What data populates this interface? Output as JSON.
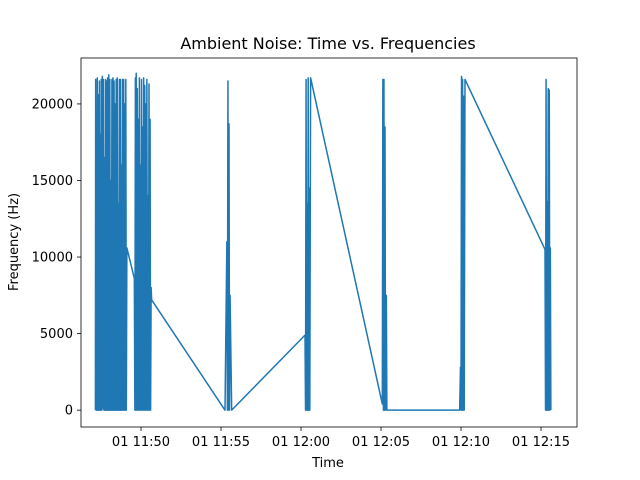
{
  "chart_data": {
    "type": "line",
    "title": "Ambient Noise: Time vs. Frequencies",
    "xlabel": "Time",
    "ylabel": "Frequency (Hz)",
    "xlim": [
      "2020-01-01 11:46:15",
      "2020-01-01 12:17:15"
    ],
    "ylim": [
      -1100,
      23000
    ],
    "xticks": [
      {
        "value": "2020-01-01 11:50:00",
        "label": "01 11:50"
      },
      {
        "value": "2020-01-01 11:55:00",
        "label": "01 11:55"
      },
      {
        "value": "2020-01-01 12:00:00",
        "label": "01 12:00"
      },
      {
        "value": "2020-01-01 12:05:00",
        "label": "01 12:05"
      },
      {
        "value": "2020-01-01 12:10:00",
        "label": "01 12:10"
      },
      {
        "value": "2020-01-01 12:15:00",
        "label": "01 12:15"
      }
    ],
    "yticks": [
      0,
      5000,
      10000,
      15000,
      20000
    ],
    "grid": false,
    "series_color": "#1f77b4",
    "series": [
      {
        "values": [
          [
            "2020-01-01 11:47:09",
            0
          ],
          [
            "2020-01-01 11:47:10",
            21600
          ],
          [
            "2020-01-01 11:47:12",
            0
          ],
          [
            "2020-01-01 11:47:13",
            13300
          ],
          [
            "2020-01-01 11:47:15",
            0
          ],
          [
            "2020-01-01 11:47:16",
            21700
          ],
          [
            "2020-01-01 11:47:18",
            0
          ],
          [
            "2020-01-01 11:47:20",
            20600
          ],
          [
            "2020-01-01 11:47:22",
            0
          ],
          [
            "2020-01-01 11:47:24",
            21500
          ],
          [
            "2020-01-01 11:47:25",
            0
          ],
          [
            "2020-01-01 11:47:27",
            18000
          ],
          [
            "2020-01-01 11:47:29",
            0
          ],
          [
            "2020-01-01 11:47:31",
            21600
          ],
          [
            "2020-01-01 11:47:33",
            0
          ],
          [
            "2020-01-01 11:47:35",
            21800
          ],
          [
            "2020-01-01 11:47:37",
            100
          ],
          [
            "2020-01-01 11:47:39",
            21600
          ],
          [
            "2020-01-01 11:47:41",
            0
          ],
          [
            "2020-01-01 11:47:43",
            16500
          ],
          [
            "2020-01-01 11:47:45",
            0
          ],
          [
            "2020-01-01 11:47:47",
            21600
          ],
          [
            "2020-01-01 11:47:49",
            0
          ],
          [
            "2020-01-01 11:47:51",
            21500
          ],
          [
            "2020-01-01 11:47:53",
            0
          ],
          [
            "2020-01-01 11:47:55",
            21700
          ],
          [
            "2020-01-01 11:47:57",
            0
          ],
          [
            "2020-01-01 11:47:59",
            21900
          ],
          [
            "2020-01-01 11:48:01",
            0
          ],
          [
            "2020-01-01 11:48:03",
            21600
          ],
          [
            "2020-01-01 11:48:05",
            0
          ],
          [
            "2020-01-01 11:48:07",
            15000
          ],
          [
            "2020-01-01 11:48:09",
            0
          ],
          [
            "2020-01-01 11:48:11",
            21600
          ],
          [
            "2020-01-01 11:48:13",
            0
          ],
          [
            "2020-01-01 11:48:15",
            21700
          ],
          [
            "2020-01-01 11:48:17",
            0
          ],
          [
            "2020-01-01 11:48:19",
            21500
          ],
          [
            "2020-01-01 11:48:21",
            0
          ],
          [
            "2020-01-01 11:48:23",
            20000
          ],
          [
            "2020-01-01 11:48:25",
            0
          ],
          [
            "2020-01-01 11:48:27",
            21600
          ],
          [
            "2020-01-01 11:48:29",
            0
          ],
          [
            "2020-01-01 11:48:31",
            21700
          ],
          [
            "2020-01-01 11:48:33",
            0
          ],
          [
            "2020-01-01 11:48:35",
            13500
          ],
          [
            "2020-01-01 11:48:37",
            0
          ],
          [
            "2020-01-01 11:48:39",
            21600
          ],
          [
            "2020-01-01 11:48:41",
            0
          ],
          [
            "2020-01-01 11:48:43",
            21600
          ],
          [
            "2020-01-01 11:48:45",
            0
          ],
          [
            "2020-01-01 11:48:47",
            16000
          ],
          [
            "2020-01-01 11:48:49",
            0
          ],
          [
            "2020-01-01 11:48:51",
            21600
          ],
          [
            "2020-01-01 11:48:53",
            0
          ],
          [
            "2020-01-01 11:48:55",
            21600
          ],
          [
            "2020-01-01 11:48:57",
            0
          ],
          [
            "2020-01-01 11:48:59",
            20000
          ],
          [
            "2020-01-01 11:49:01",
            0
          ],
          [
            "2020-01-01 11:49:03",
            21600
          ],
          [
            "2020-01-01 11:49:05",
            0
          ],
          [
            "2020-01-01 11:49:07",
            10600
          ],
          [
            "2020-01-01 11:49:35",
            8600
          ],
          [
            "2020-01-01 11:49:37",
            0
          ],
          [
            "2020-01-01 11:49:39",
            21700
          ],
          [
            "2020-01-01 11:49:40",
            0
          ],
          [
            "2020-01-01 11:49:42",
            22000
          ],
          [
            "2020-01-01 11:49:44",
            0
          ],
          [
            "2020-01-01 11:49:46",
            21000
          ],
          [
            "2020-01-01 11:49:48",
            0
          ],
          [
            "2020-01-01 11:49:50",
            19000
          ],
          [
            "2020-01-01 11:49:52",
            0
          ],
          [
            "2020-01-01 11:49:54",
            21700
          ],
          [
            "2020-01-01 11:49:56",
            0
          ],
          [
            "2020-01-01 11:49:58",
            16000
          ],
          [
            "2020-01-01 11:50:00",
            0
          ],
          [
            "2020-01-01 11:50:02",
            21600
          ],
          [
            "2020-01-01 11:50:04",
            0
          ],
          [
            "2020-01-01 11:50:06",
            18500
          ],
          [
            "2020-01-01 11:50:08",
            0
          ],
          [
            "2020-01-01 11:50:10",
            21700
          ],
          [
            "2020-01-01 11:50:12",
            0
          ],
          [
            "2020-01-01 11:50:14",
            21200
          ],
          [
            "2020-01-01 11:50:16",
            0
          ],
          [
            "2020-01-01 11:50:18",
            20000
          ],
          [
            "2020-01-01 11:50:20",
            0
          ],
          [
            "2020-01-01 11:50:22",
            21600
          ],
          [
            "2020-01-01 11:50:24",
            0
          ],
          [
            "2020-01-01 11:50:26",
            14000
          ],
          [
            "2020-01-01 11:50:28",
            0
          ],
          [
            "2020-01-01 11:50:30",
            21300
          ],
          [
            "2020-01-01 11:50:32",
            0
          ],
          [
            "2020-01-01 11:50:34",
            19000
          ],
          [
            "2020-01-01 11:50:36",
            0
          ],
          [
            "2020-01-01 11:50:38",
            8000
          ],
          [
            "2020-01-01 11:50:40",
            7200
          ],
          [
            "2020-01-01 11:55:15",
            0
          ],
          [
            "2020-01-01 11:55:22",
            11000
          ],
          [
            "2020-01-01 11:55:24",
            0
          ],
          [
            "2020-01-01 11:55:26",
            21500
          ],
          [
            "2020-01-01 11:55:28",
            0
          ],
          [
            "2020-01-01 11:55:30",
            18700
          ],
          [
            "2020-01-01 11:55:32",
            0
          ],
          [
            "2020-01-01 11:55:34",
            7500
          ],
          [
            "2020-01-01 11:55:40",
            0
          ],
          [
            "2020-01-01 12:00:15",
            4900
          ],
          [
            "2020-01-01 12:00:17",
            0
          ],
          [
            "2020-01-01 12:00:19",
            21600
          ],
          [
            "2020-01-01 12:00:21",
            0
          ],
          [
            "2020-01-01 12:00:23",
            13500
          ],
          [
            "2020-01-01 12:00:25",
            0
          ],
          [
            "2020-01-01 12:00:27",
            21700
          ],
          [
            "2020-01-01 12:00:29",
            0
          ],
          [
            "2020-01-01 12:00:31",
            14500
          ],
          [
            "2020-01-01 12:00:33",
            0
          ],
          [
            "2020-01-01 12:00:36",
            21700
          ],
          [
            "2020-01-01 12:05:05",
            400
          ],
          [
            "2020-01-01 12:05:07",
            21600
          ],
          [
            "2020-01-01 12:05:09",
            0
          ],
          [
            "2020-01-01 12:05:11",
            21600
          ],
          [
            "2020-01-01 12:05:13",
            0
          ],
          [
            "2020-01-01 12:05:15",
            18500
          ],
          [
            "2020-01-01 12:05:17",
            0
          ],
          [
            "2020-01-01 12:05:20",
            7500
          ],
          [
            "2020-01-01 12:05:22",
            0
          ],
          [
            "2020-01-01 12:09:55",
            0
          ],
          [
            "2020-01-01 12:09:58",
            2800
          ],
          [
            "2020-01-01 12:10:00",
            0
          ],
          [
            "2020-01-01 12:10:02",
            21800
          ],
          [
            "2020-01-01 12:10:04",
            0
          ],
          [
            "2020-01-01 12:10:06",
            21600
          ],
          [
            "2020-01-01 12:10:08",
            0
          ],
          [
            "2020-01-01 12:10:10",
            20500
          ],
          [
            "2020-01-01 12:10:12",
            0
          ],
          [
            "2020-01-01 12:10:15",
            21600
          ],
          [
            "2020-01-01 12:15:15",
            10500
          ],
          [
            "2020-01-01 12:15:17",
            0
          ],
          [
            "2020-01-01 12:15:19",
            21600
          ],
          [
            "2020-01-01 12:15:21",
            0
          ],
          [
            "2020-01-01 12:15:23",
            13600
          ],
          [
            "2020-01-01 12:15:25",
            0
          ],
          [
            "2020-01-01 12:15:27",
            21000
          ],
          [
            "2020-01-01 12:15:29",
            0
          ],
          [
            "2020-01-01 12:15:31",
            20900
          ],
          [
            "2020-01-01 12:15:33",
            0
          ],
          [
            "2020-01-01 12:15:35",
            10600
          ],
          [
            "2020-01-01 12:15:37",
            0
          ]
        ]
      }
    ]
  }
}
